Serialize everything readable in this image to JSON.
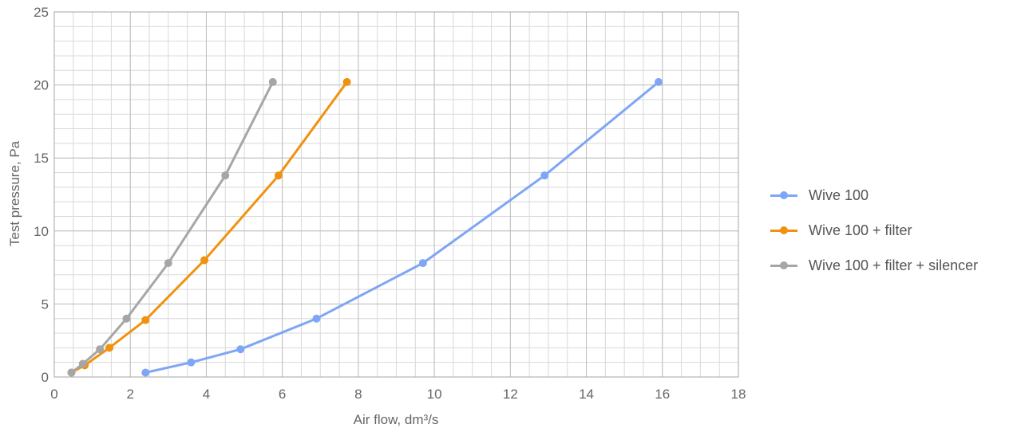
{
  "chart_data": {
    "type": "line",
    "title": "",
    "xlabel": "Air flow, dm³/s",
    "ylabel": "Test pressure, Pa",
    "xlim": [
      0,
      18
    ],
    "ylim": [
      0,
      25
    ],
    "x_ticks": [
      0,
      2,
      4,
      6,
      8,
      10,
      12,
      14,
      16,
      18
    ],
    "y_ticks": [
      0,
      5,
      10,
      15,
      20,
      25
    ],
    "x_minor_step": 0.5,
    "y_minor_step": 1,
    "grid": true,
    "legend_position": "right",
    "series": [
      {
        "name": "Wive 100",
        "color": "#7fa6f5",
        "points": [
          [
            2.4,
            0.3
          ],
          [
            3.6,
            1.0
          ],
          [
            4.9,
            1.9
          ],
          [
            6.9,
            4.0
          ],
          [
            9.7,
            7.8
          ],
          [
            12.9,
            13.8
          ],
          [
            15.9,
            20.2
          ]
        ]
      },
      {
        "name": "Wive 100 + filter",
        "color": "#f0920f",
        "points": [
          [
            0.45,
            0.3
          ],
          [
            0.8,
            0.8
          ],
          [
            1.45,
            2.0
          ],
          [
            2.4,
            3.9
          ],
          [
            3.95,
            8.0
          ],
          [
            5.9,
            13.8
          ],
          [
            7.7,
            20.2
          ]
        ]
      },
      {
        "name": "Wive 100 + filter + silencer",
        "color": "#a6a6a6",
        "points": [
          [
            0.45,
            0.3
          ],
          [
            0.75,
            0.9
          ],
          [
            1.2,
            1.9
          ],
          [
            1.9,
            4.0
          ],
          [
            3.0,
            7.8
          ],
          [
            4.5,
            13.8
          ],
          [
            5.75,
            20.2
          ]
        ]
      }
    ]
  }
}
